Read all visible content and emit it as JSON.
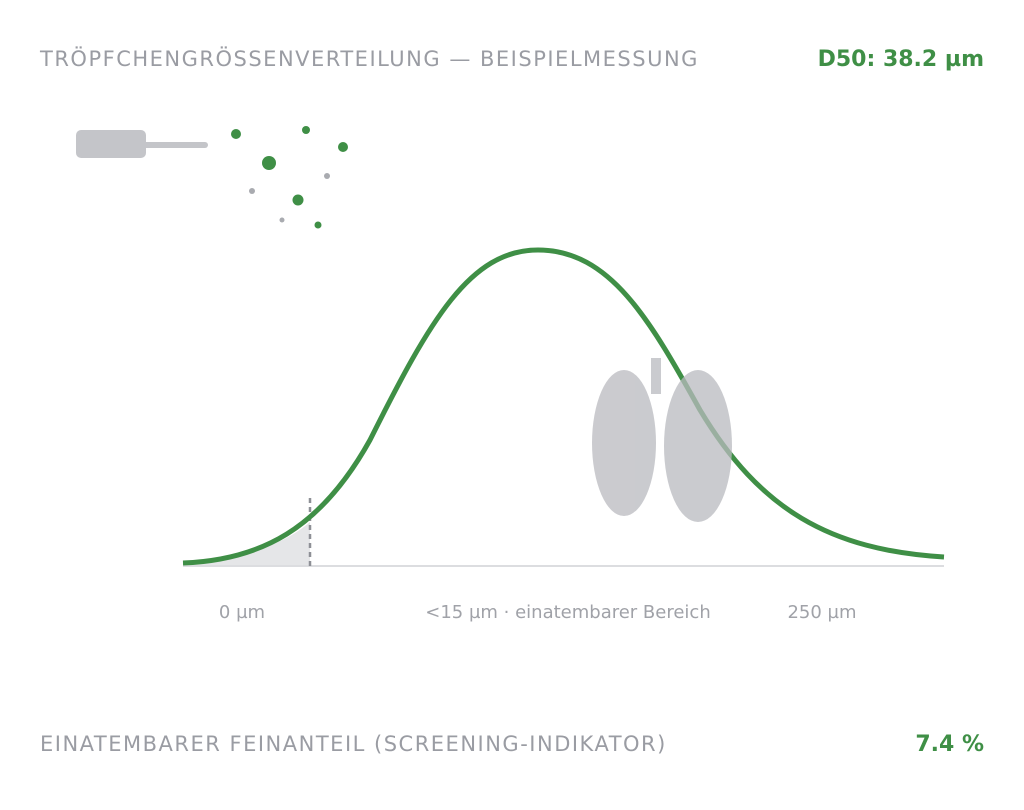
{
  "header": {
    "title": "TRÖPFCHENGRÖSSENVERTEILUNG — BEISPIELMESSUNG",
    "metric": "D50: 38.2 µm"
  },
  "axis_labels": [
    "0 µm",
    "<15 µm · einatembarer Bereich",
    "250 µm"
  ],
  "footer": {
    "label": "EINATEMBARER FEINANTEIL (SCREENING-INDIKATOR)",
    "value": "7.4 %"
  }
}
